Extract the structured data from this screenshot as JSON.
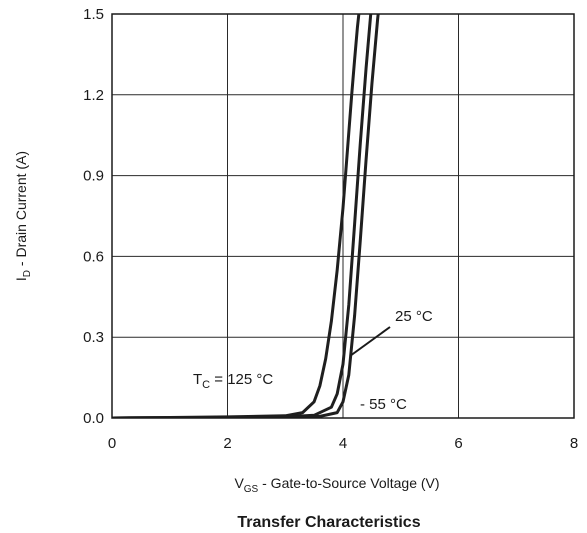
{
  "chart_data": {
    "type": "line",
    "title": "Transfer Characteristics",
    "xlabel": {
      "main": "V",
      "sub": "GS",
      "rest": " - Gate-to-Source Voltage (V)"
    },
    "ylabel": {
      "main": "I",
      "sub": "D",
      "rest": " - Drain Current (A)"
    },
    "xlim": [
      0,
      8
    ],
    "ylim": [
      0,
      1.5
    ],
    "x_ticks": [
      "0",
      "2",
      "4",
      "6",
      "8"
    ],
    "y_ticks": [
      "0.0",
      "0.3",
      "0.6",
      "0.9",
      "1.2",
      "1.5"
    ],
    "grid": true,
    "series": [
      {
        "name": "125 °C",
        "x": [
          0,
          1,
          2,
          3,
          3.3,
          3.5,
          3.6,
          3.7,
          3.8,
          3.9,
          4.0,
          4.05,
          4.1,
          4.15,
          4.2,
          4.25,
          4.3
        ],
        "y": [
          0,
          0.002,
          0.004,
          0.008,
          0.02,
          0.06,
          0.12,
          0.22,
          0.36,
          0.55,
          0.78,
          0.92,
          1.06,
          1.2,
          1.33,
          1.45,
          1.55
        ]
      },
      {
        "name": "25 °C",
        "x": [
          0,
          1,
          2,
          3,
          3.5,
          3.8,
          3.9,
          4.0,
          4.1,
          4.2,
          4.3,
          4.4,
          4.5
        ],
        "y": [
          0,
          0.001,
          0.002,
          0.004,
          0.01,
          0.04,
          0.09,
          0.2,
          0.42,
          0.72,
          1.02,
          1.3,
          1.55
        ]
      },
      {
        "name": "- 55 °C",
        "x": [
          0,
          1,
          2,
          3,
          3.6,
          3.9,
          4.0,
          4.1,
          4.2,
          4.3,
          4.4,
          4.5,
          4.6,
          4.65
        ],
        "y": [
          0,
          0.001,
          0.001,
          0.002,
          0.006,
          0.02,
          0.06,
          0.16,
          0.38,
          0.66,
          0.96,
          1.24,
          1.48,
          1.58
        ]
      }
    ],
    "annotations": [
      {
        "id": "label-125",
        "main": "T",
        "sub": "C",
        "rest": " = 125 °C"
      },
      {
        "id": "label-25",
        "text": "25 °C"
      },
      {
        "id": "label-55",
        "text": "- 55 °C"
      }
    ],
    "line_color": "#1f1f1f"
  }
}
